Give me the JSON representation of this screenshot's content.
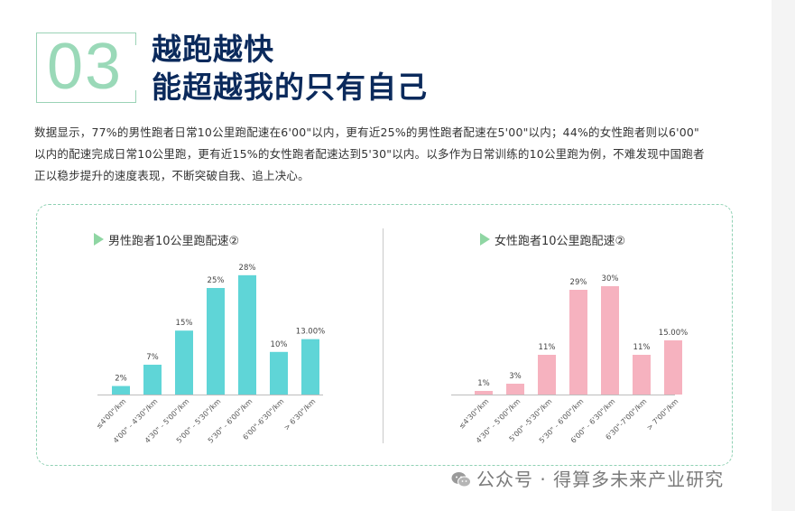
{
  "header": {
    "number": "03",
    "title_line1": "越跑越快",
    "title_line2": "能超越我的只有自己"
  },
  "description": [
    "数据显示，77%的男性跑者日常10公里跑配速在6'00\"以内，更有近25%的男性跑者配速在5'00\"以内；44%的女性跑者则以6'00\"",
    "以内的配速完成日常10公里跑，更有近15%的女性跑者配速达到5'30\"以内。以多作为日常训练的10公里跑为例，不难发现中国跑者",
    "正以稳步提升的速度表现，不断突破自我、追上决心。"
  ],
  "colors": {
    "accent_green": "#8fd6a3",
    "male_bar": "#5fd5d7",
    "female_bar": "#f6b2bf",
    "title_navy": "#0b2a5c"
  },
  "chart_data": [
    {
      "type": "bar",
      "title": "男性跑者10公里跑配速②",
      "categories": [
        "≤4'00\"/km",
        "4'00\" - 4'30\"/km",
        "4'30\" - 5'00\"/km",
        "5'00\" - 5'30\"/km",
        "5'30\" - 6'00\"/km",
        "6'00\"-6'30\"/km",
        "> 6'30\"/km"
      ],
      "values": [
        2,
        7,
        15,
        25,
        28,
        10,
        13
      ],
      "labels": [
        "2%",
        "7%",
        "15%",
        "25%",
        "28%",
        "10%",
        "13.00%"
      ],
      "ylim": [
        0,
        30
      ],
      "grid": false
    },
    {
      "type": "bar",
      "title": "女性跑者10公里跑配速②",
      "categories": [
        "≤4'30\"/km",
        "4'30\" - 5'00\"/km",
        "5'00\" -5'30\"/km",
        "5'30\" - 6'00\"/km",
        "6'00\" - 6'30\"/km",
        "6'30\"-7'00\"/km",
        "> 7'00\"/km"
      ],
      "values": [
        1,
        3,
        11,
        29,
        30,
        11,
        15
      ],
      "labels": [
        "1%",
        "3%",
        "11%",
        "29%",
        "30%",
        "11%",
        "15.00%"
      ],
      "ylim": [
        0,
        30
      ],
      "grid": false
    }
  ],
  "watermark": "公众号 · 得算多未来产业研究"
}
